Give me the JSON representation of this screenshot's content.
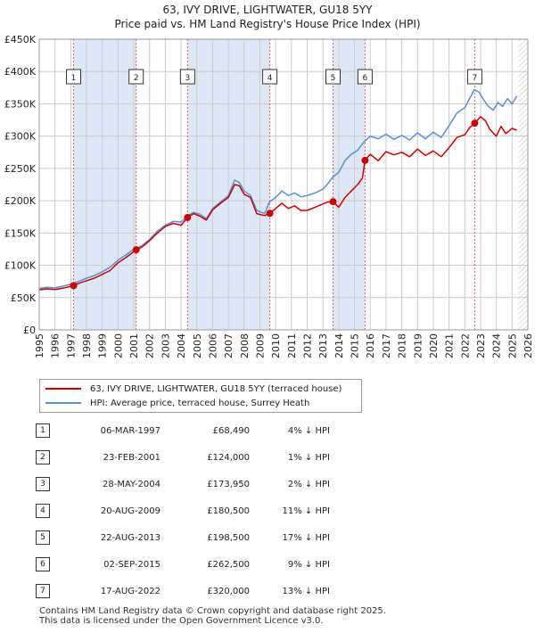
{
  "header": {
    "title_line1": "63, IVY DRIVE, LIGHTWATER, GU18 5YY",
    "title_line2": "Price paid vs. HM Land Registry's House Price Index (HPI)"
  },
  "chart_data": {
    "type": "line",
    "x_range": [
      1995,
      2026
    ],
    "y_range": [
      0,
      450000
    ],
    "y_ticks": [
      0,
      50000,
      100000,
      150000,
      200000,
      250000,
      300000,
      350000,
      400000,
      450000
    ],
    "y_tick_labels": [
      "£0",
      "£50K",
      "£100K",
      "£150K",
      "£200K",
      "£250K",
      "£300K",
      "£350K",
      "£400K",
      "£450K"
    ],
    "x_ticks": [
      1995,
      1996,
      1997,
      1998,
      1999,
      2000,
      2001,
      2002,
      2003,
      2004,
      2005,
      2006,
      2007,
      2008,
      2009,
      2010,
      2011,
      2012,
      2013,
      2014,
      2015,
      2016,
      2017,
      2018,
      2019,
      2020,
      2021,
      2022,
      2023,
      2024,
      2025,
      2026
    ],
    "x_tick_labels": [
      "1995",
      "1996",
      "1997",
      "1998",
      "1999",
      "2000",
      "2001",
      "2002",
      "2003",
      "2004",
      "2005",
      "2006",
      "2007",
      "2008",
      "2009",
      "2010",
      "2011",
      "2012",
      "2013",
      "2014",
      "2015",
      "2016",
      "2017",
      "2018",
      "2019",
      "2020",
      "2021",
      "2022",
      "2023",
      "2024",
      "2025",
      "2026"
    ],
    "data_end_year": 2025.4,
    "colors": {
      "property": "#cc0000",
      "hpi": "#5b8fd0",
      "shade": "#dde7f6",
      "grid": "#cccccc",
      "marker_line": "#e06060"
    },
    "series": [
      {
        "name": "63, IVY DRIVE, LIGHTWATER, GU18 5YY (terraced house)",
        "color": "#cc0000",
        "x": [
          1995.0,
          1995.5,
          1996.0,
          1996.5,
          1997.18,
          1997.5,
          1998.0,
          1998.5,
          1999.0,
          1999.5,
          2000.0,
          2000.5,
          2001.15,
          2001.5,
          2002.0,
          2002.5,
          2003.0,
          2003.5,
          2004.0,
          2004.41,
          2004.8,
          2005.2,
          2005.6,
          2006.0,
          2006.5,
          2007.0,
          2007.4,
          2007.7,
          2008.0,
          2008.4,
          2008.8,
          2009.1,
          2009.3,
          2009.63,
          2010.0,
          2010.4,
          2010.8,
          2011.2,
          2011.6,
          2012.0,
          2012.5,
          2013.0,
          2013.3,
          2013.64,
          2014.0,
          2014.4,
          2014.8,
          2015.2,
          2015.5,
          2015.67,
          2016.0,
          2016.5,
          2017.0,
          2017.5,
          2018.0,
          2018.5,
          2019.0,
          2019.5,
          2020.0,
          2020.5,
          2021.0,
          2021.5,
          2022.0,
          2022.3,
          2022.63,
          2023.0,
          2023.3,
          2023.6,
          2024.0,
          2024.3,
          2024.6,
          2025.0,
          2025.3
        ],
        "y": [
          62000,
          63500,
          62500,
          64500,
          68490,
          72000,
          76000,
          80000,
          86000,
          92000,
          104000,
          112000,
          124000,
          128000,
          138000,
          150000,
          160000,
          165000,
          162000,
          173950,
          180000,
          176000,
          170000,
          186000,
          196000,
          205000,
          225000,
          223000,
          210000,
          205000,
          180000,
          178000,
          177000,
          180500,
          188000,
          196000,
          188000,
          192000,
          185000,
          185000,
          190000,
          195000,
          198000,
          198500,
          190000,
          205000,
          215000,
          225000,
          235000,
          262500,
          272000,
          262000,
          276000,
          271000,
          275000,
          268000,
          280000,
          270000,
          277000,
          268000,
          282000,
          298000,
          302000,
          313000,
          320000,
          330000,
          324000,
          310000,
          300000,
          315000,
          304000,
          312000,
          309000
        ]
      },
      {
        "name": "HPI: Average price, terraced house, Surrey Heath",
        "color": "#5b8fd0",
        "x": [
          1995.0,
          1995.5,
          1996.0,
          1996.5,
          1997.0,
          1997.5,
          1998.0,
          1998.5,
          1999.0,
          1999.5,
          2000.0,
          2000.5,
          2001.0,
          2001.5,
          2002.0,
          2002.5,
          2003.0,
          2003.5,
          2004.0,
          2004.5,
          2004.8,
          2005.2,
          2005.6,
          2006.0,
          2006.5,
          2007.0,
          2007.4,
          2007.7,
          2008.0,
          2008.4,
          2008.8,
          2009.1,
          2009.3,
          2009.6,
          2010.0,
          2010.4,
          2010.8,
          2011.2,
          2011.6,
          2012.0,
          2012.5,
          2013.0,
          2013.3,
          2013.6,
          2014.0,
          2014.4,
          2014.8,
          2015.2,
          2015.5,
          2015.7,
          2016.0,
          2016.5,
          2017.0,
          2017.5,
          2018.0,
          2018.5,
          2019.0,
          2019.5,
          2020.0,
          2020.5,
          2021.0,
          2021.5,
          2022.0,
          2022.3,
          2022.6,
          2022.9,
          2023.2,
          2023.5,
          2023.8,
          2024.1,
          2024.4,
          2024.7,
          2025.0,
          2025.3
        ],
        "y": [
          64000,
          66000,
          65000,
          67500,
          71000,
          75000,
          80000,
          84000,
          90000,
          97000,
          108000,
          116000,
          125000,
          130000,
          140000,
          153000,
          162000,
          168000,
          167000,
          178000,
          182000,
          179000,
          172000,
          188000,
          198000,
          208000,
          232000,
          228000,
          215000,
          208000,
          185000,
          182000,
          180000,
          198000,
          205000,
          215000,
          208000,
          212000,
          206000,
          208000,
          212000,
          218000,
          226000,
          236000,
          244000,
          262000,
          272000,
          278000,
          288000,
          293000,
          300000,
          296000,
          303000,
          295000,
          301000,
          294000,
          305000,
          296000,
          306000,
          298000,
          316000,
          336000,
          344000,
          358000,
          372000,
          368000,
          356000,
          346000,
          340000,
          352000,
          346000,
          358000,
          350000,
          362000
        ]
      }
    ],
    "sales": [
      {
        "label": "1",
        "x": 1997.18,
        "y": 68490
      },
      {
        "label": "2",
        "x": 2001.15,
        "y": 124000
      },
      {
        "label": "3",
        "x": 2004.41,
        "y": 173950
      },
      {
        "label": "4",
        "x": 2009.63,
        "y": 180500
      },
      {
        "label": "5",
        "x": 2013.64,
        "y": 198500
      },
      {
        "label": "6",
        "x": 2015.67,
        "y": 262500
      },
      {
        "label": "7",
        "x": 2022.63,
        "y": 320000
      }
    ]
  },
  "legend": {
    "property_label": "63, IVY DRIVE, LIGHTWATER, GU18 5YY (terraced house)",
    "hpi_label": "HPI: Average price, terraced house, Surrey Heath"
  },
  "transactions": [
    {
      "num": "1",
      "date": "06-MAR-1997",
      "price": "£68,490",
      "pct": "4% ↓ HPI"
    },
    {
      "num": "2",
      "date": "23-FEB-2001",
      "price": "£124,000",
      "pct": "1% ↓ HPI"
    },
    {
      "num": "3",
      "date": "28-MAY-2004",
      "price": "£173,950",
      "pct": "2% ↓ HPI"
    },
    {
      "num": "4",
      "date": "20-AUG-2009",
      "price": "£180,500",
      "pct": "11% ↓ HPI"
    },
    {
      "num": "5",
      "date": "22-AUG-2013",
      "price": "£198,500",
      "pct": "17% ↓ HPI"
    },
    {
      "num": "6",
      "date": "02-SEP-2015",
      "price": "£262,500",
      "pct": "9% ↓ HPI"
    },
    {
      "num": "7",
      "date": "17-AUG-2022",
      "price": "£320,000",
      "pct": "13% ↓ HPI"
    }
  ],
  "footer": {
    "line1": "Contains HM Land Registry data © Crown copyright and database right 2025.",
    "line2": "This data is licensed under the Open Government Licence v3.0."
  }
}
